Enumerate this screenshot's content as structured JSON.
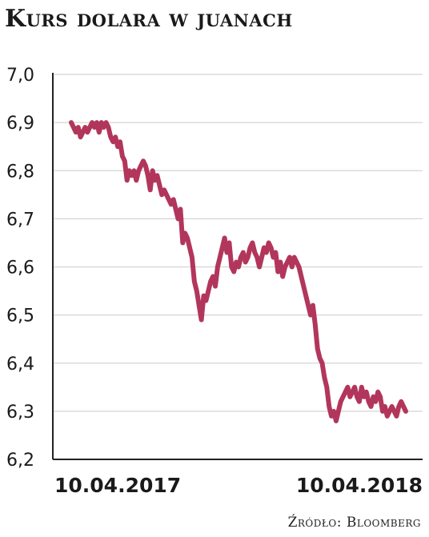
{
  "title": "Kurs dolara w juanach",
  "source": "Źródło: Bloomberg",
  "colors": {
    "line": "#b2365c",
    "grid": "#d4d4d4",
    "axis": "#222222",
    "text": "#1a1a1a"
  },
  "chart_data": {
    "type": "line",
    "title": "Kurs dolara w juanach",
    "xlabel": "",
    "ylabel": "",
    "ylim": [
      6.2,
      7.0
    ],
    "y_ticks": [
      "7,0",
      "6,9",
      "6,8",
      "6,7",
      "6,6",
      "6,5",
      "6,4",
      "6,3",
      "6,2"
    ],
    "y_tick_values": [
      7.0,
      6.9,
      6.8,
      6.7,
      6.6,
      6.5,
      6.4,
      6.3,
      6.2
    ],
    "x_tick_labels": [
      "10.04.2017",
      "10.04.2018"
    ],
    "grid": true,
    "legend": "none",
    "series": [
      {
        "values": [
          6.9,
          6.89,
          6.88,
          6.89,
          6.87,
          6.88,
          6.89,
          6.88,
          6.89,
          6.9,
          6.89,
          6.9,
          6.88,
          6.9,
          6.89,
          6.9,
          6.89,
          6.87,
          6.86,
          6.87,
          6.85,
          6.86,
          6.83,
          6.82,
          6.78,
          6.8,
          6.79,
          6.8,
          6.78,
          6.8,
          6.81,
          6.82,
          6.81,
          6.79,
          6.76,
          6.8,
          6.78,
          6.79,
          6.77,
          6.75,
          6.76,
          6.75,
          6.74,
          6.73,
          6.74,
          6.72,
          6.7,
          6.72,
          6.65,
          6.67,
          6.66,
          6.64,
          6.62,
          6.57,
          6.55,
          6.52,
          6.49,
          6.54,
          6.53,
          6.55,
          6.57,
          6.58,
          6.56,
          6.6,
          6.62,
          6.64,
          6.66,
          6.63,
          6.65,
          6.6,
          6.59,
          6.61,
          6.6,
          6.62,
          6.63,
          6.61,
          6.62,
          6.64,
          6.65,
          6.63,
          6.62,
          6.6,
          6.62,
          6.64,
          6.63,
          6.65,
          6.64,
          6.62,
          6.63,
          6.59,
          6.61,
          6.58,
          6.6,
          6.61,
          6.62,
          6.6,
          6.62,
          6.61,
          6.6,
          6.58,
          6.56,
          6.54,
          6.52,
          6.5,
          6.52,
          6.48,
          6.43,
          6.41,
          6.4,
          6.37,
          6.35,
          6.31,
          6.29,
          6.3,
          6.28,
          6.3,
          6.32,
          6.33,
          6.34,
          6.35,
          6.33,
          6.34,
          6.35,
          6.33,
          6.32,
          6.35,
          6.33,
          6.34,
          6.32,
          6.31,
          6.33,
          6.32,
          6.34,
          6.33,
          6.3,
          6.31,
          6.29,
          6.3,
          6.31,
          6.3,
          6.29,
          6.31,
          6.32,
          6.31,
          6.3
        ]
      }
    ]
  }
}
